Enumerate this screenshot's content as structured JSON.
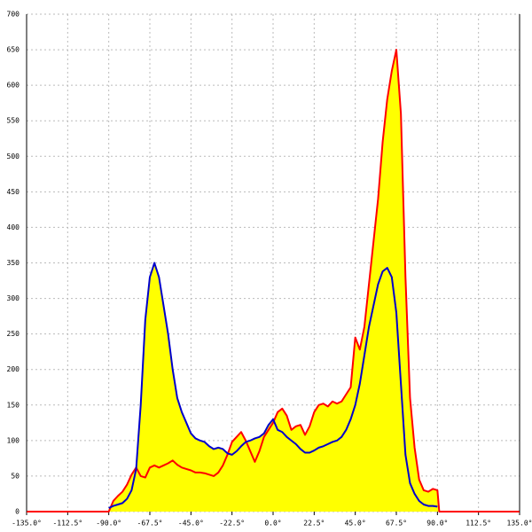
{
  "chart_data": {
    "type": "area",
    "x": [
      -135,
      -90,
      -87.5,
      -85,
      -82.5,
      -80,
      -77.5,
      -75,
      -72.5,
      -70,
      -67.5,
      -65,
      -62.5,
      -60,
      -57.5,
      -55,
      -52.5,
      -50,
      -47.5,
      -45,
      -42.5,
      -40,
      -37.5,
      -35,
      -32.5,
      -30,
      -27.5,
      -25,
      -22.5,
      -20,
      -17.5,
      -15,
      -12.5,
      -10,
      -7.5,
      -5,
      -2.5,
      0,
      2.5,
      5,
      7.5,
      10,
      12.5,
      15,
      17.5,
      20,
      22.5,
      25,
      27.5,
      30,
      32.5,
      35,
      37.5,
      40,
      42.5,
      45,
      47.5,
      50,
      52.5,
      55,
      57.5,
      60,
      62.5,
      65,
      67.5,
      70,
      72.5,
      75,
      77.5,
      80,
      82.5,
      85,
      87.5,
      90,
      91,
      135
    ],
    "series": [
      {
        "color": "#ff0000",
        "values": [
          0,
          0,
          15,
          22,
          28,
          38,
          52,
          62,
          50,
          48,
          62,
          65,
          62,
          65,
          68,
          72,
          66,
          62,
          60,
          58,
          55,
          55,
          54,
          52,
          50,
          55,
          65,
          80,
          98,
          105,
          112,
          100,
          85,
          70,
          85,
          105,
          115,
          125,
          140,
          145,
          135,
          115,
          120,
          122,
          108,
          120,
          140,
          150,
          152,
          148,
          155,
          152,
          155,
          165,
          175,
          245,
          228,
          260,
          320,
          380,
          440,
          520,
          580,
          620,
          650,
          560,
          330,
          160,
          90,
          45,
          30,
          28,
          32,
          30,
          0,
          0
        ]
      },
      {
        "color": "#0000cc",
        "values": [
          null,
          5,
          8,
          10,
          12,
          18,
          30,
          60,
          150,
          270,
          330,
          350,
          330,
          290,
          250,
          200,
          160,
          140,
          125,
          110,
          103,
          100,
          98,
          92,
          88,
          90,
          88,
          82,
          80,
          85,
          92,
          98,
          100,
          103,
          105,
          110,
          122,
          130,
          115,
          112,
          105,
          100,
          95,
          88,
          83,
          83,
          86,
          90,
          92,
          95,
          98,
          100,
          105,
          115,
          130,
          150,
          180,
          220,
          260,
          290,
          320,
          338,
          343,
          330,
          280,
          180,
          80,
          40,
          25,
          15,
          10,
          8,
          8,
          7,
          null,
          null
        ]
      }
    ],
    "fill": "#ffff00",
    "xlim": [
      -135,
      135
    ],
    "ylim": [
      0,
      700
    ],
    "xticks": [
      {
        "value": -135,
        "label": "-135.0°"
      },
      {
        "value": -112.5,
        "label": "-112.5°"
      },
      {
        "value": -90,
        "label": "-90.0°"
      },
      {
        "value": -67.5,
        "label": "-67.5°"
      },
      {
        "value": -45,
        "label": "-45.0°"
      },
      {
        "value": -22.5,
        "label": "-22.5°"
      },
      {
        "value": 0,
        "label": "0.0°"
      },
      {
        "value": 22.5,
        "label": "22.5°"
      },
      {
        "value": 45,
        "label": "45.0°"
      },
      {
        "value": 67.5,
        "label": "67.5°"
      },
      {
        "value": 90,
        "label": "90.0°"
      },
      {
        "value": 112.5,
        "label": "112.5°"
      },
      {
        "value": 135,
        "label": "135.0°"
      }
    ],
    "yticks": [
      0,
      50,
      100,
      150,
      200,
      250,
      300,
      350,
      400,
      450,
      500,
      550,
      600,
      650,
      700
    ],
    "grid": true
  }
}
